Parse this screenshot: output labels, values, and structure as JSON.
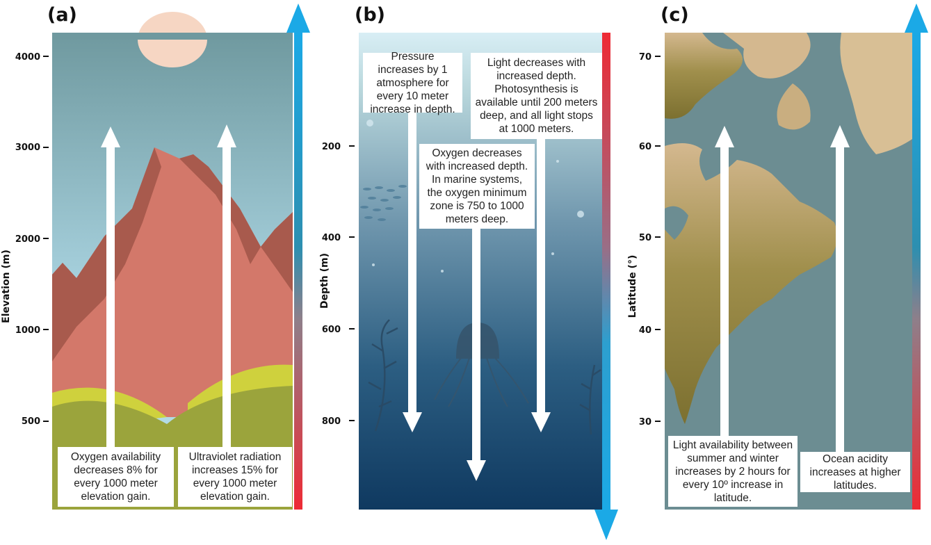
{
  "panels": [
    {
      "label": "(a)",
      "axis_title": "Elevation (m)",
      "ticks": [
        "500",
        "1000",
        "2000",
        "3000",
        "4000"
      ],
      "notes": [
        "Oxygen availability decreases 8% for every 1000 meter elevation gain.",
        "Ultraviolet radiation increases 15% for every 1000 meter elevation gain."
      ]
    },
    {
      "label": "(b)",
      "axis_title": "Depth (m)",
      "ticks": [
        "200",
        "400",
        "600",
        "800"
      ],
      "notes": [
        "Pressure increases by 1 atmosphere for every 10 meter increase in depth.",
        "Light decreases with increased depth. Photosynthesis is available until 200 meters deep, and all light stops at 1000 meters.",
        "Oxygen decreases with increased depth. In marine systems, the oxygen minimum zone is 750 to 1000 meters deep."
      ]
    },
    {
      "label": "(c)",
      "axis_title": "Latitude (°)",
      "ticks": [
        "30",
        "40",
        "50",
        "60",
        "70"
      ],
      "notes": [
        "Light availability between summer and winter increases by 2 hours for every 10º increase in latitude.",
        "Ocean acidity increases at higher latitudes."
      ]
    }
  ],
  "colors": {
    "gradient_blue": "#1ba9e6",
    "gradient_red": "#ee2a34",
    "mountain": "#d3786a",
    "ocean_deep": "#12395e",
    "land": "#8b7d3a"
  }
}
